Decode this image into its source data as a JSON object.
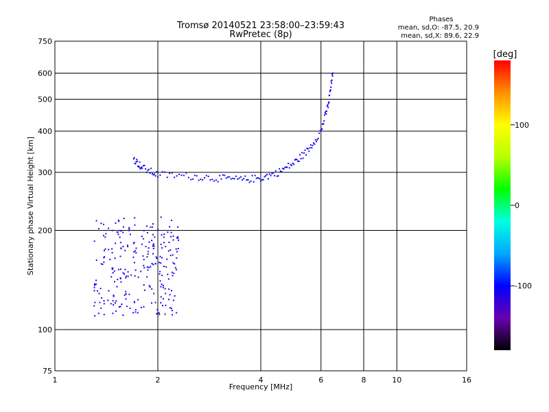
{
  "chart_data": {
    "type": "scatter",
    "title": "Tromsø 20140521 23:58:00–23:59:43",
    "subtitle": "RwPretec (8p)",
    "xlabel": "Frequency [MHz]",
    "ylabel": "Stationary phase Virtual Height [km]",
    "x_scale": "log",
    "y_scale": "log",
    "xlim": [
      1,
      16
    ],
    "ylim": [
      75,
      750
    ],
    "x_ticks": [
      "1",
      "2",
      "4",
      "6",
      "8",
      "10",
      "16"
    ],
    "y_ticks": [
      "75",
      "100",
      "200",
      "300",
      "400",
      "500",
      "600",
      "750"
    ],
    "grid": true,
    "phase_stats": {
      "heading": "Phases",
      "o_line": "mean, sd,O: -87.5, 20.9",
      "x_line": "mean, sd,X: 89.6, 22.9"
    },
    "colorbar": {
      "unit": "[deg]",
      "range": [
        -180,
        180
      ],
      "ticks": [
        "100",
        "0",
        "-100"
      ],
      "colors": [
        "#000000",
        "#6a00b0",
        "#0000ff",
        "#00a8ff",
        "#00ffe0",
        "#00ff00",
        "#b8ff00",
        "#ffff00",
        "#ff9000",
        "#ff0000"
      ]
    },
    "series": [
      {
        "description": "lower E/F1 echo cluster",
        "x_range": [
          1.3,
          2.3
        ],
        "y_range": [
          110,
          220
        ],
        "phase_deg": -110
      },
      {
        "description": "F-layer trace",
        "points": [
          {
            "x": 1.7,
            "y": 330
          },
          {
            "x": 1.8,
            "y": 310
          },
          {
            "x": 2.0,
            "y": 295
          },
          {
            "x": 2.5,
            "y": 292
          },
          {
            "x": 3.0,
            "y": 288
          },
          {
            "x": 3.5,
            "y": 285
          },
          {
            "x": 4.0,
            "y": 288
          },
          {
            "x": 4.5,
            "y": 300
          },
          {
            "x": 5.0,
            "y": 320
          },
          {
            "x": 5.5,
            "y": 350
          },
          {
            "x": 6.0,
            "y": 400
          },
          {
            "x": 6.3,
            "y": 480
          },
          {
            "x": 6.5,
            "y": 600
          }
        ],
        "phase_deg": -105
      }
    ]
  }
}
